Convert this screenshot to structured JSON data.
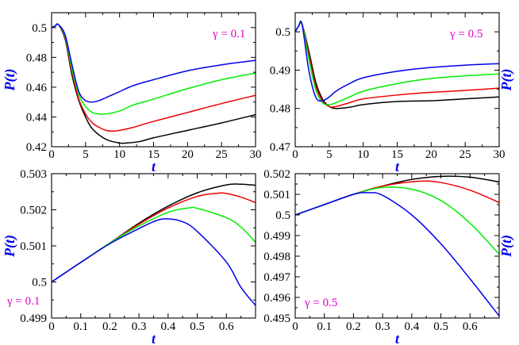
{
  "figure": {
    "ylabel": "P(t)",
    "xlabel": "t",
    "label_color": "#0000ee",
    "annotation_color": "#e000c8"
  },
  "chart_data": [
    {
      "type": "line",
      "id": "panel-top-left",
      "annotation": "γ = 0.1",
      "xlabel": "t",
      "ylabel": "P(t)",
      "xlim": [
        0,
        30
      ],
      "ylim": [
        0.42,
        0.51
      ],
      "xticks": [
        0,
        5,
        10,
        15,
        20,
        25,
        30
      ],
      "yticks": [
        0.42,
        0.44,
        0.46,
        0.48,
        0.5
      ],
      "ytick_labels": [
        "0.42",
        "0.44",
        "0.46",
        "0.48",
        "0.5"
      ],
      "series": [
        {
          "name": "black",
          "color": "#000000",
          "x": [
            0,
            0.5,
            1,
            2,
            3,
            4,
            5,
            6,
            8,
            10,
            11,
            13,
            15,
            20,
            25,
            30
          ],
          "y": [
            0.5,
            0.501,
            0.502,
            0.492,
            0.468,
            0.451,
            0.44,
            0.432,
            0.425,
            0.4225,
            0.4225,
            0.4235,
            0.426,
            0.431,
            0.436,
            0.4415
          ]
        },
        {
          "name": "red",
          "color": "#ee0000",
          "x": [
            0,
            0.5,
            1,
            2,
            3,
            4,
            5,
            6,
            7,
            8,
            9,
            10,
            12,
            15,
            20,
            25,
            30
          ],
          "y": [
            0.5,
            0.501,
            0.502,
            0.493,
            0.47,
            0.452,
            0.442,
            0.436,
            0.433,
            0.431,
            0.4305,
            0.431,
            0.433,
            0.437,
            0.443,
            0.449,
            0.4545
          ]
        },
        {
          "name": "green",
          "color": "#00ee00",
          "x": [
            0,
            0.5,
            1,
            2,
            3,
            4,
            5,
            6,
            7,
            8,
            10,
            12,
            15,
            20,
            25,
            30
          ],
          "y": [
            0.5,
            0.501,
            0.502,
            0.494,
            0.472,
            0.455,
            0.447,
            0.443,
            0.442,
            0.442,
            0.444,
            0.448,
            0.452,
            0.459,
            0.465,
            0.4695
          ]
        },
        {
          "name": "blue",
          "color": "#0000ee",
          "x": [
            0,
            0.5,
            1,
            2,
            3,
            4,
            5,
            6,
            7,
            8,
            10,
            12,
            15,
            20,
            25,
            30
          ],
          "y": [
            0.5,
            0.501,
            0.502,
            0.495,
            0.475,
            0.457,
            0.451,
            0.45,
            0.451,
            0.453,
            0.457,
            0.461,
            0.465,
            0.471,
            0.475,
            0.478
          ]
        }
      ]
    },
    {
      "type": "line",
      "id": "panel-top-right",
      "annotation": "γ = 0.5",
      "xlabel": "t",
      "ylabel": "P(t)",
      "xlim": [
        0,
        30
      ],
      "ylim": [
        0.47,
        0.505
      ],
      "xticks": [
        0,
        5,
        10,
        15,
        20,
        25,
        30
      ],
      "yticks": [
        0.47,
        0.48,
        0.49,
        0.5
      ],
      "ytick_labels": [
        "0.47",
        "0.48",
        "0.49",
        "0.5"
      ],
      "series": [
        {
          "name": "black",
          "color": "#000000",
          "x": [
            0,
            0.5,
            1,
            2,
            3,
            4,
            5,
            6,
            8,
            10,
            15,
            20,
            25,
            30
          ],
          "y": [
            0.5,
            0.5015,
            0.502,
            0.495,
            0.487,
            0.4825,
            0.4805,
            0.48,
            0.4803,
            0.481,
            0.4818,
            0.482,
            0.4825,
            0.483
          ]
        },
        {
          "name": "red",
          "color": "#ee0000",
          "x": [
            0,
            0.5,
            1,
            2,
            3,
            4,
            5,
            6,
            8,
            10,
            15,
            20,
            25,
            30
          ],
          "y": [
            0.5,
            0.5015,
            0.502,
            0.494,
            0.486,
            0.482,
            0.4805,
            0.4805,
            0.4815,
            0.4825,
            0.4835,
            0.4842,
            0.4847,
            0.4853
          ]
        },
        {
          "name": "green",
          "color": "#00ee00",
          "x": [
            0,
            0.5,
            1,
            2,
            3,
            4,
            5,
            6,
            8,
            10,
            15,
            20,
            25,
            30
          ],
          "y": [
            0.5,
            0.5015,
            0.502,
            0.493,
            0.485,
            0.4815,
            0.481,
            0.4815,
            0.483,
            0.4845,
            0.4865,
            0.4878,
            0.4885,
            0.489
          ]
        },
        {
          "name": "blue",
          "color": "#0000ee",
          "x": [
            0,
            0.5,
            1,
            2,
            3,
            4,
            5,
            6,
            8,
            10,
            15,
            20,
            25,
            30
          ],
          "y": [
            0.5,
            0.5015,
            0.502,
            0.49,
            0.483,
            0.482,
            0.483,
            0.4845,
            0.4865,
            0.488,
            0.4897,
            0.4907,
            0.4913,
            0.4917
          ]
        }
      ]
    },
    {
      "type": "line",
      "id": "panel-bottom-left",
      "annotation": "γ = 0.1",
      "xlabel": "t",
      "ylabel": "P(t)",
      "xlim": [
        0,
        0.7
      ],
      "ylim": [
        0.499,
        0.503
      ],
      "xticks": [
        0,
        0.1,
        0.2,
        0.3,
        0.4,
        0.5,
        0.6
      ],
      "yticks": [
        0.499,
        0.5,
        0.501,
        0.502,
        0.503
      ],
      "ytick_labels": [
        "0.499",
        "0.5",
        "0.501",
        "0.502",
        "0.503"
      ],
      "series": [
        {
          "name": "black",
          "color": "#000000",
          "x": [
            0,
            0.1,
            0.2,
            0.3,
            0.4,
            0.5,
            0.6,
            0.65,
            0.7
          ],
          "y": [
            0.5,
            0.50054,
            0.50108,
            0.50163,
            0.5021,
            0.50247,
            0.50269,
            0.50271,
            0.50268
          ]
        },
        {
          "name": "red",
          "color": "#ee0000",
          "x": [
            0,
            0.1,
            0.2,
            0.3,
            0.4,
            0.5,
            0.57,
            0.6,
            0.65,
            0.7
          ],
          "y": [
            0.5,
            0.50054,
            0.50108,
            0.5016,
            0.50205,
            0.50237,
            0.50246,
            0.50245,
            0.50235,
            0.5022
          ]
        },
        {
          "name": "green",
          "color": "#00ee00",
          "x": [
            0,
            0.1,
            0.2,
            0.3,
            0.4,
            0.47,
            0.5,
            0.6,
            0.65,
            0.7
          ],
          "y": [
            0.5,
            0.50054,
            0.50108,
            0.50155,
            0.50193,
            0.50205,
            0.50204,
            0.50178,
            0.50152,
            0.5011
          ]
        },
        {
          "name": "blue",
          "color": "#0000ee",
          "x": [
            0,
            0.1,
            0.2,
            0.3,
            0.35,
            0.39,
            0.45,
            0.5,
            0.6,
            0.65,
            0.7
          ],
          "y": [
            0.5,
            0.50054,
            0.50106,
            0.50148,
            0.50167,
            0.50175,
            0.50167,
            0.5014,
            0.50055,
            0.49985,
            0.49935
          ]
        }
      ]
    },
    {
      "type": "line",
      "id": "panel-bottom-right",
      "annotation": "γ = 0.5",
      "xlabel": "t",
      "ylabel": "P(t)",
      "xlim": [
        0,
        0.7
      ],
      "ylim": [
        0.495,
        0.502
      ],
      "xticks": [
        0,
        0.1,
        0.2,
        0.3,
        0.4,
        0.5,
        0.6
      ],
      "yticks": [
        0.495,
        0.496,
        0.497,
        0.498,
        0.499,
        0.5,
        0.501,
        0.502
      ],
      "ytick_labels": [
        "0.495",
        "0.496",
        "0.497",
        "0.498",
        "0.499",
        "0.5",
        "0.501",
        "0.502"
      ],
      "series": [
        {
          "name": "black",
          "color": "#000000",
          "x": [
            0,
            0.1,
            0.2,
            0.3,
            0.4,
            0.5,
            0.6,
            0.7
          ],
          "y": [
            0.5,
            0.5005,
            0.501,
            0.5014,
            0.50172,
            0.50187,
            0.50183,
            0.5016
          ]
        },
        {
          "name": "red",
          "color": "#ee0000",
          "x": [
            0,
            0.1,
            0.2,
            0.3,
            0.42,
            0.5,
            0.6,
            0.7
          ],
          "y": [
            0.5,
            0.5005,
            0.501,
            0.5014,
            0.50163,
            0.50157,
            0.5012,
            0.5006
          ]
        },
        {
          "name": "green",
          "color": "#00ee00",
          "x": [
            0,
            0.1,
            0.2,
            0.3,
            0.4,
            0.5,
            0.6,
            0.7
          ],
          "y": [
            0.5,
            0.5005,
            0.501,
            0.50133,
            0.50125,
            0.5007,
            0.4996,
            0.4981
          ]
        },
        {
          "name": "blue",
          "color": "#0000ee",
          "x": [
            0,
            0.1,
            0.2,
            0.25,
            0.3,
            0.4,
            0.5,
            0.6,
            0.7
          ],
          "y": [
            0.5,
            0.5005,
            0.501,
            0.50108,
            0.50095,
            0.5,
            0.4986,
            0.4969,
            0.4951
          ]
        }
      ]
    }
  ]
}
